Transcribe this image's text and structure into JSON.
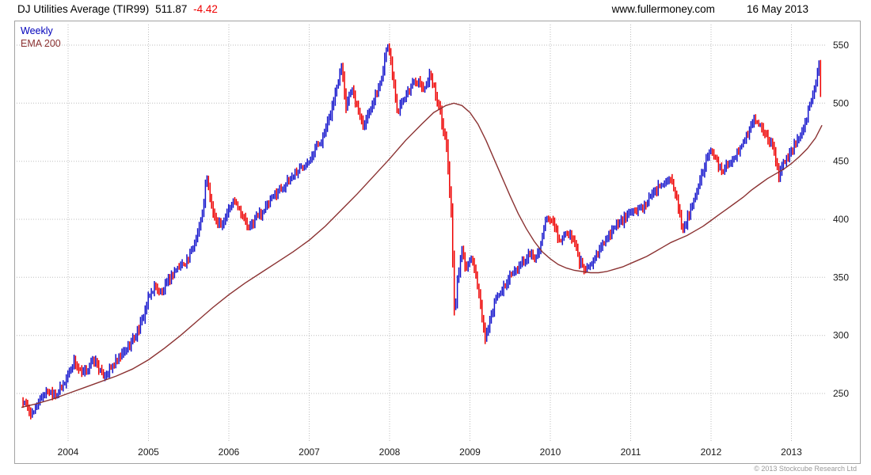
{
  "header": {
    "title": "DJ Utilities Average (TIR99)",
    "last_price": "511.87",
    "change": "-4.42",
    "website": "www.fullermoney.com",
    "date": "16 May 2013"
  },
  "legend": {
    "series1": "Weekly",
    "series2": "EMA 200"
  },
  "footer": {
    "copyright": "© 2013 Stockcube Research Ltd"
  },
  "colors": {
    "up": "#1414cc",
    "down": "#ee0000",
    "ema": "#8b3232",
    "grid": "#bdbdbd",
    "axis_text": "#1a1a1a",
    "change_text": "#ee0000",
    "legend_weekly": "#0000bb"
  },
  "chart_data": {
    "type": "bar",
    "subtype": "weekly-ohlc-bars-with-ema",
    "title": "DJ Utilities Average (TIR99) 511.87 -4.42",
    "xlabel": "",
    "ylabel": "",
    "y_axis_side": "right",
    "grid": true,
    "legend_position": "top-left",
    "x_ticks": [
      2004,
      2005,
      2006,
      2007,
      2008,
      2009,
      2010,
      2011,
      2012,
      2013
    ],
    "y_ticks": [
      250,
      300,
      350,
      400,
      450,
      500,
      550
    ],
    "x_range": [
      2003.42,
      2013.42
    ],
    "y_range": [
      228,
      562
    ],
    "series": [
      {
        "name": "Weekly",
        "style": "price-bars"
      },
      {
        "name": "EMA 200",
        "style": "line"
      }
    ],
    "price_weekly_close_estimates": [
      [
        2003.42,
        244
      ],
      [
        2003.5,
        237
      ],
      [
        2003.56,
        231
      ],
      [
        2003.65,
        246
      ],
      [
        2003.75,
        252
      ],
      [
        2003.85,
        250
      ],
      [
        2003.95,
        258
      ],
      [
        2004.0,
        268
      ],
      [
        2004.08,
        278
      ],
      [
        2004.17,
        266
      ],
      [
        2004.25,
        272
      ],
      [
        2004.33,
        279
      ],
      [
        2004.42,
        266
      ],
      [
        2004.5,
        268
      ],
      [
        2004.58,
        276
      ],
      [
        2004.67,
        283
      ],
      [
        2004.75,
        290
      ],
      [
        2004.83,
        299
      ],
      [
        2004.92,
        312
      ],
      [
        2005.0,
        332
      ],
      [
        2005.08,
        343
      ],
      [
        2005.17,
        336
      ],
      [
        2005.25,
        348
      ],
      [
        2005.33,
        356
      ],
      [
        2005.42,
        361
      ],
      [
        2005.5,
        366
      ],
      [
        2005.58,
        382
      ],
      [
        2005.67,
        403
      ],
      [
        2005.72,
        436
      ],
      [
        2005.78,
        414
      ],
      [
        2005.83,
        398
      ],
      [
        2005.92,
        397
      ],
      [
        2006.0,
        409
      ],
      [
        2006.08,
        417
      ],
      [
        2006.17,
        403
      ],
      [
        2006.25,
        391
      ],
      [
        2006.33,
        401
      ],
      [
        2006.42,
        407
      ],
      [
        2006.5,
        414
      ],
      [
        2006.58,
        422
      ],
      [
        2006.67,
        428
      ],
      [
        2006.75,
        434
      ],
      [
        2006.83,
        440
      ],
      [
        2006.92,
        446
      ],
      [
        2007.0,
        452
      ],
      [
        2007.08,
        462
      ],
      [
        2007.17,
        470
      ],
      [
        2007.25,
        487
      ],
      [
        2007.33,
        510
      ],
      [
        2007.4,
        534
      ],
      [
        2007.46,
        497
      ],
      [
        2007.52,
        514
      ],
      [
        2007.6,
        496
      ],
      [
        2007.67,
        481
      ],
      [
        2007.75,
        494
      ],
      [
        2007.83,
        508
      ],
      [
        2007.9,
        521
      ],
      [
        2007.97,
        554
      ],
      [
        2008.04,
        524
      ],
      [
        2008.1,
        492
      ],
      [
        2008.17,
        502
      ],
      [
        2008.24,
        510
      ],
      [
        2008.31,
        521
      ],
      [
        2008.38,
        516
      ],
      [
        2008.44,
        511
      ],
      [
        2008.5,
        527
      ],
      [
        2008.57,
        509
      ],
      [
        2008.64,
        489
      ],
      [
        2008.71,
        462
      ],
      [
        2008.77,
        402
      ],
      [
        2008.81,
        314
      ],
      [
        2008.85,
        352
      ],
      [
        2008.9,
        372
      ],
      [
        2008.96,
        356
      ],
      [
        2009.02,
        368
      ],
      [
        2009.08,
        348
      ],
      [
        2009.14,
        322
      ],
      [
        2009.19,
        296
      ],
      [
        2009.25,
        314
      ],
      [
        2009.32,
        330
      ],
      [
        2009.4,
        340
      ],
      [
        2009.48,
        350
      ],
      [
        2009.56,
        354
      ],
      [
        2009.65,
        362
      ],
      [
        2009.73,
        370
      ],
      [
        2009.81,
        368
      ],
      [
        2009.88,
        378
      ],
      [
        2009.95,
        400
      ],
      [
        2010.04,
        396
      ],
      [
        2010.12,
        380
      ],
      [
        2010.2,
        388
      ],
      [
        2010.28,
        384
      ],
      [
        2010.36,
        364
      ],
      [
        2010.44,
        356
      ],
      [
        2010.52,
        362
      ],
      [
        2010.6,
        372
      ],
      [
        2010.68,
        382
      ],
      [
        2010.76,
        390
      ],
      [
        2010.84,
        396
      ],
      [
        2010.92,
        400
      ],
      [
        2011.0,
        404
      ],
      [
        2011.08,
        408
      ],
      [
        2011.16,
        412
      ],
      [
        2011.24,
        418
      ],
      [
        2011.32,
        425
      ],
      [
        2011.4,
        431
      ],
      [
        2011.48,
        437
      ],
      [
        2011.54,
        428
      ],
      [
        2011.6,
        407
      ],
      [
        2011.65,
        388
      ],
      [
        2011.7,
        400
      ],
      [
        2011.76,
        410
      ],
      [
        2011.84,
        428
      ],
      [
        2011.92,
        446
      ],
      [
        2011.98,
        460
      ],
      [
        2012.06,
        450
      ],
      [
        2012.14,
        442
      ],
      [
        2012.22,
        448
      ],
      [
        2012.3,
        454
      ],
      [
        2012.38,
        462
      ],
      [
        2012.46,
        474
      ],
      [
        2012.54,
        488
      ],
      [
        2012.62,
        480
      ],
      [
        2012.7,
        470
      ],
      [
        2012.78,
        460
      ],
      [
        2012.84,
        438
      ],
      [
        2012.9,
        448
      ],
      [
        2012.97,
        455
      ],
      [
        2013.04,
        464
      ],
      [
        2013.1,
        472
      ],
      [
        2013.17,
        484
      ],
      [
        2013.24,
        500
      ],
      [
        2013.3,
        518
      ],
      [
        2013.34,
        536
      ],
      [
        2013.38,
        512
      ]
    ],
    "ema_200": [
      [
        2003.42,
        238
      ],
      [
        2003.6,
        241
      ],
      [
        2003.8,
        245
      ],
      [
        2004.0,
        250
      ],
      [
        2004.2,
        255
      ],
      [
        2004.4,
        260
      ],
      [
        2004.6,
        265
      ],
      [
        2004.8,
        271
      ],
      [
        2005.0,
        279
      ],
      [
        2005.2,
        289
      ],
      [
        2005.4,
        300
      ],
      [
        2005.6,
        312
      ],
      [
        2005.8,
        324
      ],
      [
        2006.0,
        335
      ],
      [
        2006.2,
        345
      ],
      [
        2006.4,
        354
      ],
      [
        2006.6,
        363
      ],
      [
        2006.8,
        372
      ],
      [
        2007.0,
        382
      ],
      [
        2007.2,
        394
      ],
      [
        2007.4,
        408
      ],
      [
        2007.6,
        422
      ],
      [
        2007.8,
        437
      ],
      [
        2008.0,
        452
      ],
      [
        2008.2,
        468
      ],
      [
        2008.4,
        482
      ],
      [
        2008.55,
        492
      ],
      [
        2008.7,
        498
      ],
      [
        2008.8,
        500
      ],
      [
        2008.9,
        498
      ],
      [
        2009.0,
        492
      ],
      [
        2009.1,
        482
      ],
      [
        2009.2,
        468
      ],
      [
        2009.3,
        452
      ],
      [
        2009.4,
        436
      ],
      [
        2009.5,
        420
      ],
      [
        2009.6,
        405
      ],
      [
        2009.7,
        392
      ],
      [
        2009.8,
        381
      ],
      [
        2009.9,
        372
      ],
      [
        2010.0,
        366
      ],
      [
        2010.1,
        361
      ],
      [
        2010.2,
        358
      ],
      [
        2010.3,
        356
      ],
      [
        2010.4,
        355
      ],
      [
        2010.5,
        354
      ],
      [
        2010.6,
        354
      ],
      [
        2010.7,
        355
      ],
      [
        2010.8,
        357
      ],
      [
        2010.9,
        359
      ],
      [
        2011.0,
        362
      ],
      [
        2011.1,
        365
      ],
      [
        2011.2,
        368
      ],
      [
        2011.3,
        372
      ],
      [
        2011.4,
        376
      ],
      [
        2011.5,
        380
      ],
      [
        2011.6,
        383
      ],
      [
        2011.7,
        386
      ],
      [
        2011.8,
        390
      ],
      [
        2011.9,
        394
      ],
      [
        2012.0,
        399
      ],
      [
        2012.1,
        404
      ],
      [
        2012.2,
        409
      ],
      [
        2012.3,
        414
      ],
      [
        2012.4,
        419
      ],
      [
        2012.5,
        425
      ],
      [
        2012.6,
        430
      ],
      [
        2012.7,
        435
      ],
      [
        2012.8,
        439
      ],
      [
        2012.9,
        443
      ],
      [
        2013.0,
        448
      ],
      [
        2013.1,
        454
      ],
      [
        2013.2,
        461
      ],
      [
        2013.3,
        470
      ],
      [
        2013.38,
        481
      ]
    ]
  }
}
